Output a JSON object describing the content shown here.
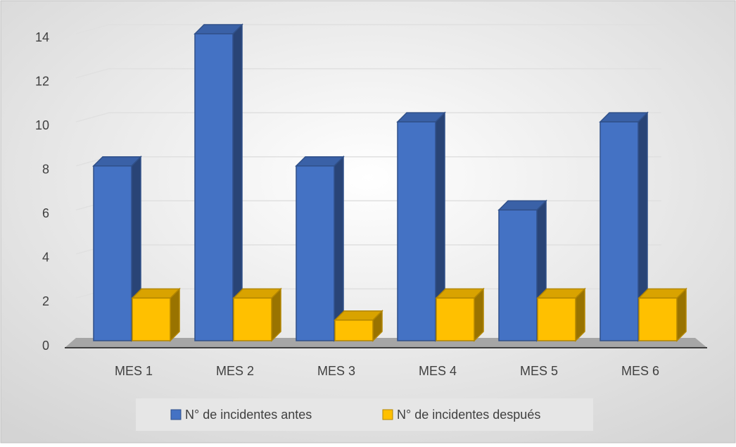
{
  "chart_data": {
    "type": "bar3d",
    "categories": [
      "MES 1",
      "MES 2",
      "MES 3",
      "MES 4",
      "MES 5",
      "MES 6"
    ],
    "series": [
      {
        "name": "N° de incidentes antes",
        "color": "#4472c4",
        "values": [
          8,
          14,
          8,
          10,
          6,
          10
        ]
      },
      {
        "name": "N° de incidentes después",
        "color": "#ffc000",
        "values": [
          2,
          2,
          1,
          2,
          2,
          2
        ]
      }
    ],
    "ylim": [
      0,
      14
    ],
    "yticks": [
      0,
      2,
      4,
      6,
      8,
      10,
      12,
      14
    ],
    "grid": true,
    "legend": "bottom"
  }
}
